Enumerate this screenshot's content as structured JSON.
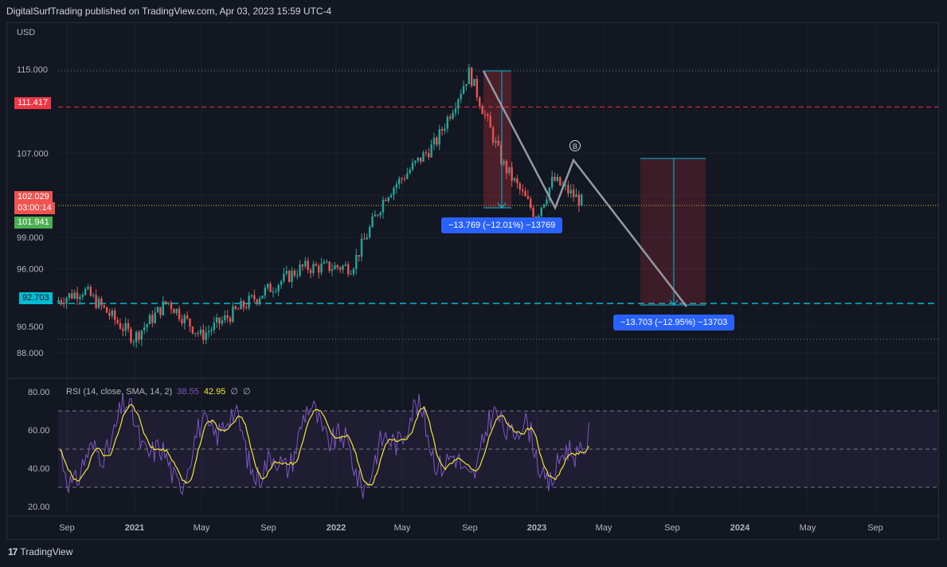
{
  "header": {
    "publisher": "DigitalSurfTrading published on TradingView.com, Apr 03, 2023 15:59 UTC-4"
  },
  "price_axis": {
    "currency": "USD",
    "ticks": [
      "115.000",
      "107.000",
      "103.000",
      "99.000",
      "96.000",
      "90.500",
      "88.000"
    ],
    "ticks_values": [
      115.0,
      107.0,
      103.0,
      99.0,
      96.0,
      90.5,
      88.0
    ]
  },
  "badges": {
    "resistance": "111.417",
    "current_price": "102.029",
    "countdown": "03:00:14",
    "prev_close": "101.941",
    "support": "92.703",
    "partial_hidden": "92.703"
  },
  "colors": {
    "background": "#131722",
    "up": "#26a69a",
    "down": "#ef5350",
    "resistance": "#f23645",
    "support": "#00bcd4",
    "rsi": "#7e57c2",
    "rsi_ma": "#f1e52f",
    "measure": "#2962ff"
  },
  "measures": {
    "first": "−13.769 (−12.01%) −13769",
    "second": "−13.703 (−12.95%) −13703"
  },
  "pattern_label": "B",
  "rsi": {
    "title": "RSI (14, close, SMA, 14, 2)",
    "value": "38.55",
    "ma_value": "42.95",
    "empty1": "∅",
    "empty2": "∅",
    "ticks": [
      "80.00",
      "60.00",
      "40.00",
      "20.00"
    ],
    "tick_values": [
      80,
      60,
      40,
      20
    ]
  },
  "time_axis": {
    "labels": [
      "Sep",
      "2021",
      "May",
      "Sep",
      "2022",
      "May",
      "Sep",
      "2023",
      "May",
      "Sep",
      "2024",
      "May",
      "Sep"
    ],
    "bold": [
      false,
      true,
      false,
      false,
      true,
      false,
      false,
      true,
      false,
      false,
      true,
      false,
      false
    ]
  },
  "chart_data": {
    "type": "candlestick",
    "title": "",
    "currency": "USD",
    "x": [
      "Sep",
      "2021",
      "May",
      "Sep",
      "2022",
      "May",
      "Sep",
      "2023",
      "May",
      "Sep",
      "2024",
      "May",
      "Sep"
    ],
    "key_points": [
      {
        "x": "2020-08",
        "price": 92.7
      },
      {
        "x": "2020-10",
        "price": 94.0
      },
      {
        "x": "2021-01",
        "price": 89.4
      },
      {
        "x": "2021-03",
        "price": 92.9
      },
      {
        "x": "2021-05",
        "price": 89.6
      },
      {
        "x": "2021-08",
        "price": 93.0
      },
      {
        "x": "2021-11",
        "price": 96.1
      },
      {
        "x": "2022-02",
        "price": 96.2
      },
      {
        "x": "2022-04",
        "price": 103.0
      },
      {
        "x": "2022-07",
        "price": 108.0
      },
      {
        "x": "2022-09",
        "price": 114.7
      },
      {
        "x": "2022-11",
        "price": 106.0
      },
      {
        "x": "2023-01",
        "price": 101.0
      },
      {
        "x": "2023-02",
        "price": 104.5
      },
      {
        "x": "2023-04",
        "price": 102.0
      }
    ],
    "levels": [
      {
        "label": "resistance",
        "value": 111.417
      },
      {
        "label": "current",
        "value": 102.029
      },
      {
        "label": "support",
        "value": 92.703
      }
    ],
    "ylim": [
      87.0,
      117.0
    ]
  }
}
